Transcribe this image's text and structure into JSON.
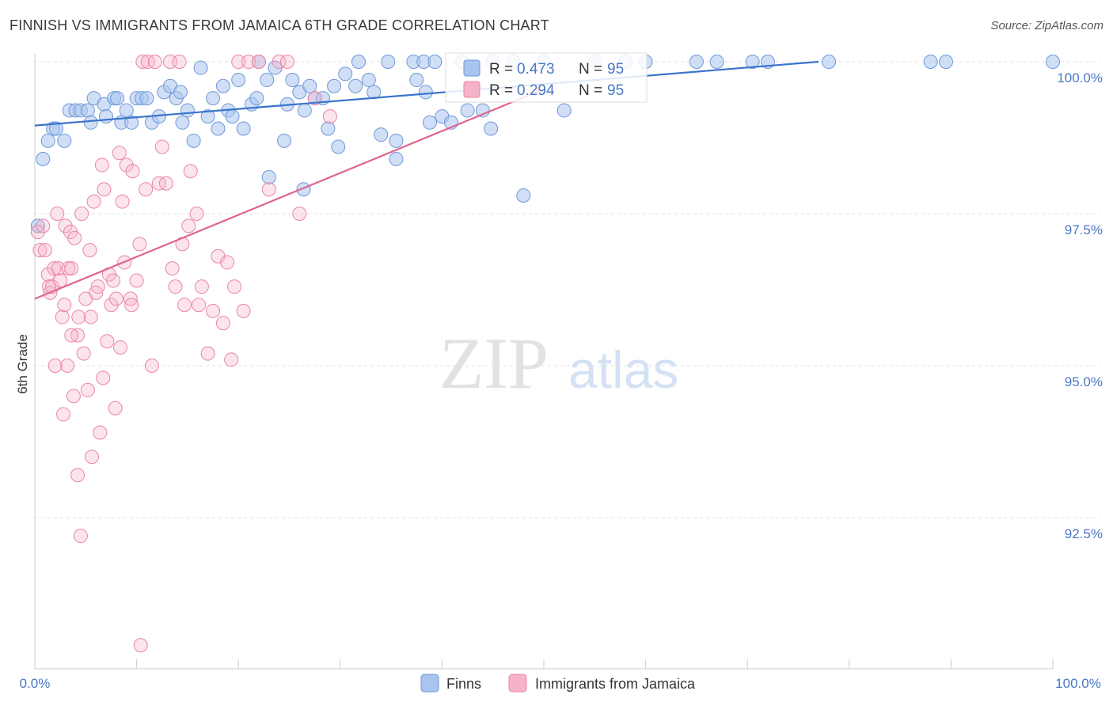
{
  "header": {
    "title": "FINNISH VS IMMIGRANTS FROM JAMAICA 6TH GRADE CORRELATION CHART",
    "source": "Source: ZipAtlas.com"
  },
  "watermark": {
    "zip": "ZIP",
    "atlas": "atlas"
  },
  "legend": {
    "r_label": "R =",
    "n_label": "N =",
    "rows": [
      {
        "r": "0.473",
        "n": "95",
        "color": "#a9c4ee"
      },
      {
        "r": "0.294",
        "n": "95",
        "color": "#f5b3c8"
      }
    ]
  },
  "bottom_legend": [
    {
      "label": "Finns",
      "color": "#a9c4ee"
    },
    {
      "label": "Immigrants from Jamaica",
      "color": "#f5b3c8"
    }
  ],
  "chart_data": {
    "type": "scatter",
    "title": "FINNISH VS IMMIGRANTS FROM JAMAICA 6TH GRADE CORRELATION CHART",
    "xlabel": "",
    "ylabel": "6th Grade",
    "xlim": [
      0,
      100
    ],
    "ylim": [
      90.2,
      100.4
    ],
    "x_tick_labels": [
      "0.0%",
      "100.0%"
    ],
    "y_ticks": [
      92.5,
      95.0,
      97.5,
      100.0
    ],
    "y_tick_labels": [
      "92.5%",
      "95.0%",
      "97.5%",
      "100.0%"
    ],
    "grid": "horizontal dashed",
    "legend_position": "top-center",
    "series": [
      {
        "name": "Finns",
        "color": "#a9c4ee",
        "edge": "#6f98d8",
        "trend": {
          "x": [
            0,
            77
          ],
          "y": [
            98.95,
            100.0
          ],
          "color": "#3a74cc"
        },
        "points": [
          [
            0.3,
            97.3
          ],
          [
            0.8,
            98.4
          ],
          [
            1.3,
            98.7
          ],
          [
            1.8,
            98.9
          ],
          [
            2.1,
            98.9
          ],
          [
            2.9,
            98.7
          ],
          [
            3.4,
            99.2
          ],
          [
            4.0,
            99.2
          ],
          [
            4.5,
            99.2
          ],
          [
            5.2,
            99.2
          ],
          [
            5.5,
            99.0
          ],
          [
            5.8,
            99.4
          ],
          [
            6.8,
            99.3
          ],
          [
            7.0,
            99.1
          ],
          [
            7.8,
            99.4
          ],
          [
            8.1,
            99.4
          ],
          [
            8.5,
            99.0
          ],
          [
            9.0,
            99.2
          ],
          [
            9.5,
            99.0
          ],
          [
            10.0,
            99.4
          ],
          [
            10.5,
            99.4
          ],
          [
            11.0,
            99.4
          ],
          [
            11.5,
            99.0
          ],
          [
            12.2,
            99.1
          ],
          [
            12.7,
            99.5
          ],
          [
            13.3,
            99.6
          ],
          [
            13.9,
            99.4
          ],
          [
            14.3,
            99.5
          ],
          [
            14.5,
            99.0
          ],
          [
            15.0,
            99.2
          ],
          [
            15.6,
            98.7
          ],
          [
            16.3,
            99.9
          ],
          [
            17.0,
            99.1
          ],
          [
            17.5,
            99.4
          ],
          [
            18.0,
            98.9
          ],
          [
            18.5,
            99.6
          ],
          [
            19.0,
            99.2
          ],
          [
            19.4,
            99.1
          ],
          [
            20.0,
            99.7
          ],
          [
            20.5,
            98.9
          ],
          [
            21.3,
            99.3
          ],
          [
            21.8,
            99.4
          ],
          [
            22.0,
            100.0
          ],
          [
            22.8,
            99.7
          ],
          [
            23.0,
            98.1
          ],
          [
            23.6,
            99.9
          ],
          [
            24.5,
            98.7
          ],
          [
            24.8,
            99.3
          ],
          [
            25.3,
            99.7
          ],
          [
            26.0,
            99.5
          ],
          [
            26.4,
            97.9
          ],
          [
            26.5,
            99.2
          ],
          [
            27.0,
            99.6
          ],
          [
            27.5,
            99.4
          ],
          [
            28.3,
            99.4
          ],
          [
            28.8,
            98.9
          ],
          [
            29.4,
            99.6
          ],
          [
            29.8,
            98.6
          ],
          [
            30.5,
            99.8
          ],
          [
            31.5,
            99.6
          ],
          [
            31.8,
            100.0
          ],
          [
            32.8,
            99.7
          ],
          [
            33.3,
            99.5
          ],
          [
            34.0,
            98.8
          ],
          [
            34.7,
            100.0
          ],
          [
            35.5,
            98.4
          ],
          [
            35.5,
            98.7
          ],
          [
            37.2,
            100.0
          ],
          [
            37.5,
            99.7
          ],
          [
            38.2,
            100.0
          ],
          [
            38.4,
            99.5
          ],
          [
            38.8,
            99.0
          ],
          [
            39.3,
            100.0
          ],
          [
            40.0,
            99.1
          ],
          [
            40.9,
            99.0
          ],
          [
            42.0,
            100.0
          ],
          [
            42.5,
            99.2
          ],
          [
            44.0,
            99.2
          ],
          [
            44.8,
            98.9
          ],
          [
            45.0,
            100.0
          ],
          [
            47.0,
            100.0
          ],
          [
            48.0,
            97.8
          ],
          [
            50.0,
            100.0
          ],
          [
            52.0,
            99.2
          ],
          [
            55.0,
            100.0
          ],
          [
            58.0,
            100.0
          ],
          [
            60.0,
            100.0
          ],
          [
            65.0,
            100.0
          ],
          [
            67.0,
            100.0
          ],
          [
            70.5,
            100.0
          ],
          [
            72.0,
            100.0
          ],
          [
            78.0,
            100.0
          ],
          [
            88.0,
            100.0
          ],
          [
            89.5,
            100.0
          ],
          [
            100.0,
            100.0
          ]
        ]
      },
      {
        "name": "Immigrants from Jamaica",
        "color": "#f5b3c8",
        "edge": "#e886a6",
        "trend": {
          "x": [
            0,
            50
          ],
          "y": [
            96.1,
            99.55
          ],
          "color": "#e0648e"
        },
        "points": [
          [
            0.3,
            97.2
          ],
          [
            0.5,
            96.9
          ],
          [
            0.8,
            97.3
          ],
          [
            1.0,
            96.9
          ],
          [
            1.3,
            96.5
          ],
          [
            1.4,
            96.3
          ],
          [
            1.5,
            96.2
          ],
          [
            1.7,
            96.3
          ],
          [
            1.9,
            96.6
          ],
          [
            2.0,
            95.0
          ],
          [
            2.2,
            97.5
          ],
          [
            2.3,
            96.6
          ],
          [
            2.5,
            96.4
          ],
          [
            2.7,
            95.8
          ],
          [
            2.9,
            96.0
          ],
          [
            3.0,
            97.3
          ],
          [
            3.2,
            95.0
          ],
          [
            3.3,
            96.6
          ],
          [
            3.5,
            97.2
          ],
          [
            3.6,
            96.6
          ],
          [
            3.8,
            94.5
          ],
          [
            3.9,
            97.1
          ],
          [
            4.2,
            95.5
          ],
          [
            4.3,
            95.8
          ],
          [
            4.6,
            97.5
          ],
          [
            4.8,
            95.2
          ],
          [
            5.0,
            96.1
          ],
          [
            5.2,
            94.6
          ],
          [
            5.5,
            95.8
          ],
          [
            5.6,
            93.5
          ],
          [
            5.8,
            97.7
          ],
          [
            6.0,
            96.2
          ],
          [
            6.2,
            96.3
          ],
          [
            6.4,
            93.9
          ],
          [
            6.6,
            98.3
          ],
          [
            6.8,
            97.9
          ],
          [
            7.1,
            95.4
          ],
          [
            7.3,
            96.5
          ],
          [
            7.5,
            96.0
          ],
          [
            7.7,
            96.4
          ],
          [
            8.0,
            96.1
          ],
          [
            8.3,
            98.5
          ],
          [
            8.4,
            95.3
          ],
          [
            8.6,
            97.7
          ],
          [
            8.8,
            96.7
          ],
          [
            9.0,
            98.3
          ],
          [
            9.4,
            96.1
          ],
          [
            9.6,
            98.2
          ],
          [
            10.0,
            96.4
          ],
          [
            10.3,
            97.0
          ],
          [
            10.6,
            100.0
          ],
          [
            10.9,
            97.9
          ],
          [
            11.1,
            100.0
          ],
          [
            11.5,
            95.0
          ],
          [
            11.8,
            100.0
          ],
          [
            12.2,
            98.0
          ],
          [
            12.5,
            98.6
          ],
          [
            12.9,
            98.0
          ],
          [
            13.3,
            100.0
          ],
          [
            13.5,
            96.6
          ],
          [
            13.8,
            96.3
          ],
          [
            14.2,
            100.0
          ],
          [
            14.5,
            97.0
          ],
          [
            14.7,
            96.0
          ],
          [
            15.1,
            97.3
          ],
          [
            15.3,
            98.2
          ],
          [
            15.9,
            97.5
          ],
          [
            16.1,
            96.0
          ],
          [
            16.4,
            96.3
          ],
          [
            17.0,
            95.2
          ],
          [
            17.5,
            95.9
          ],
          [
            18.0,
            96.8
          ],
          [
            18.5,
            95.7
          ],
          [
            18.9,
            96.7
          ],
          [
            19.3,
            95.1
          ],
          [
            19.6,
            96.3
          ],
          [
            20.0,
            100.0
          ],
          [
            20.5,
            95.9
          ],
          [
            21.0,
            100.0
          ],
          [
            22.0,
            100.0
          ],
          [
            23.0,
            97.9
          ],
          [
            24.0,
            100.0
          ],
          [
            24.8,
            100.0
          ],
          [
            26.0,
            97.5
          ],
          [
            27.5,
            99.4
          ],
          [
            29.0,
            99.1
          ],
          [
            4.2,
            93.2
          ],
          [
            4.5,
            92.2
          ],
          [
            9.5,
            96.0
          ],
          [
            2.8,
            94.2
          ],
          [
            3.6,
            95.5
          ],
          [
            5.4,
            96.9
          ],
          [
            7.9,
            94.3
          ],
          [
            10.4,
            90.4
          ],
          [
            6.7,
            94.8
          ]
        ]
      }
    ]
  }
}
